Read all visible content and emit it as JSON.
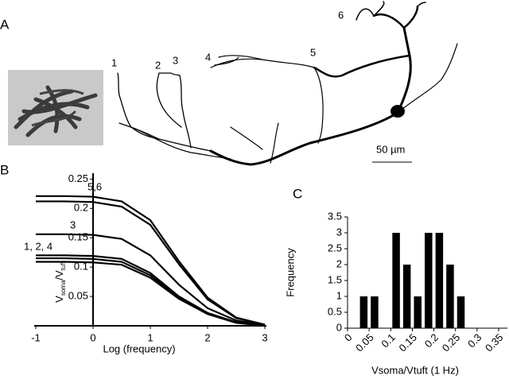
{
  "panels": {
    "a": {
      "label": "A",
      "cells": [
        "1",
        "2",
        "3",
        "4",
        "5",
        "6"
      ],
      "scale": "50 µm"
    },
    "b": {
      "label": "B"
    },
    "c": {
      "label": "C"
    }
  },
  "chart_data": [
    {
      "type": "line",
      "xlabel": "Log (frequency)",
      "ylabel_parts": [
        "V",
        "soma",
        "/V",
        "tuft"
      ],
      "x": [
        -1,
        -0.5,
        0,
        0.5,
        1,
        1.5,
        2,
        2.5,
        3
      ],
      "series": [
        {
          "color": "#000000",
          "values": [
            0.221,
            0.221,
            0.22,
            0.212,
            0.18,
            0.11,
            0.048,
            0.014,
            0.002
          ]
        },
        {
          "color": "#000000",
          "values": [
            0.212,
            0.212,
            0.211,
            0.203,
            0.172,
            0.105,
            0.045,
            0.013,
            0.002
          ]
        },
        {
          "color": "#000000",
          "values": [
            0.156,
            0.156,
            0.155,
            0.148,
            0.12,
            0.07,
            0.03,
            0.009,
            0.001
          ]
        },
        {
          "color": "#000000",
          "values": [
            0.12,
            0.12,
            0.119,
            0.114,
            0.09,
            0.05,
            0.022,
            0.006,
            0
          ]
        },
        {
          "color": "#000000",
          "values": [
            0.115,
            0.115,
            0.114,
            0.109,
            0.086,
            0.048,
            0.021,
            0.006,
            0
          ]
        },
        {
          "color": "#000000",
          "values": [
            0.109,
            0.109,
            0.108,
            0.104,
            0.082,
            0.046,
            0.02,
            0.005,
            0
          ]
        }
      ],
      "annotations": [
        "5,6",
        "3",
        "1, 2, 4"
      ],
      "xlim": [
        -1,
        3
      ],
      "xticks": [
        -1,
        0,
        1,
        2,
        3
      ],
      "ylim": [
        0,
        0.26
      ],
      "yticks": [
        0.05,
        0.1,
        0.15,
        0.2,
        0.25
      ]
    },
    {
      "type": "histogram",
      "xlabel": "Vsoma/Vtuft (1 Hz)",
      "ylabel": "Frequency",
      "color": "#000000",
      "bins": [
        0.025,
        0.05,
        0.075,
        0.1,
        0.125,
        0.15,
        0.175,
        0.2,
        0.225,
        0.25,
        0.275
      ],
      "values": [
        1,
        1,
        0,
        3,
        2,
        1,
        3,
        3,
        2,
        1
      ],
      "xlim": [
        0,
        0.35
      ],
      "xticks": [
        0,
        0.05,
        0.1,
        0.15,
        0.2,
        0.25,
        0.3,
        0.35
      ],
      "ylim": [
        0,
        3.5
      ],
      "yticks": [
        0,
        0.5,
        1,
        1.5,
        2,
        2.5,
        3,
        3.5
      ]
    }
  ]
}
